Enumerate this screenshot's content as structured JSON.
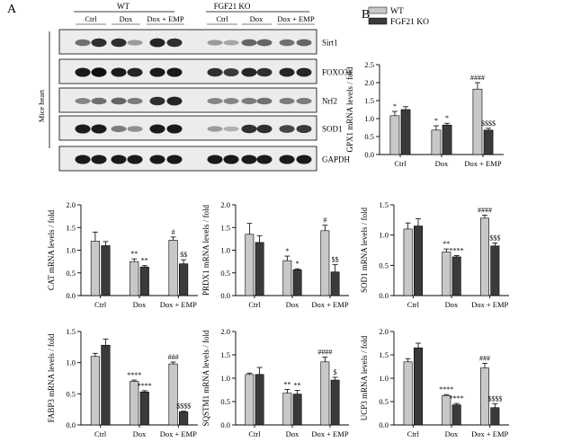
{
  "panel_labels": {
    "a": "A",
    "b": "B"
  },
  "blot": {
    "groups": [
      "WT",
      "FGF21 KO"
    ],
    "lanes": [
      "Ctrl",
      "Dox",
      "Dox + EMP",
      "Ctrl",
      "Dox",
      "Dox + EMP"
    ],
    "side_label": "Mice heart",
    "proteins": [
      "Sirt1",
      "FOXO3a",
      "Nrf2",
      "SOD1",
      "GAPDH"
    ],
    "band_intensity": [
      [
        0.55,
        0.85,
        0.85,
        0.35,
        0.9,
        0.85,
        0.35,
        0.3,
        0.6,
        0.6,
        0.55,
        0.6
      ],
      [
        0.95,
        1.0,
        0.95,
        0.9,
        0.95,
        0.95,
        0.85,
        0.8,
        0.9,
        0.85,
        0.9,
        0.9
      ],
      [
        0.45,
        0.55,
        0.6,
        0.5,
        0.85,
        0.9,
        0.45,
        0.45,
        0.5,
        0.55,
        0.5,
        0.5
      ],
      [
        0.95,
        0.95,
        0.5,
        0.4,
        0.95,
        0.95,
        0.35,
        0.25,
        0.85,
        0.85,
        0.75,
        0.8
      ],
      [
        0.95,
        0.95,
        0.95,
        0.95,
        0.95,
        0.95,
        0.95,
        0.95,
        0.95,
        0.95,
        0.95,
        0.95
      ]
    ]
  },
  "legend": {
    "entries": [
      "WT",
      "FGF21 KO"
    ]
  },
  "colors": {
    "wt": "#c8c8c8",
    "ko": "#3a3a3a"
  },
  "chart_data": [
    {
      "type": "bar",
      "ylabel": "GPX1 mRNA levels / fold",
      "categories": [
        "Ctrl",
        "Dox",
        "Dox + EMP"
      ],
      "series": [
        {
          "name": "WT",
          "values": [
            1.08,
            0.68,
            1.82
          ],
          "errors": [
            0.12,
            0.12,
            0.18
          ]
        },
        {
          "name": "FGF21 KO",
          "values": [
            1.25,
            0.82,
            0.68
          ],
          "errors": [
            0.08,
            0.05,
            0.05
          ]
        }
      ],
      "ylim": [
        0,
        2.5
      ],
      "yticks": [
        "0.0",
        "0.5",
        "1.0",
        "1.5",
        "2.0",
        "2.5"
      ],
      "annotations": [
        [
          "*",
          "*",
          "####"
        ],
        [
          "",
          "*",
          "$$$$"
        ]
      ]
    },
    {
      "type": "bar",
      "ylabel": "CAT mRNA levels / fold",
      "categories": [
        "Ctrl",
        "Dox",
        "Dox + EMP"
      ],
      "series": [
        {
          "name": "WT",
          "values": [
            1.2,
            0.75,
            1.22
          ],
          "errors": [
            0.2,
            0.06,
            0.07
          ]
        },
        {
          "name": "FGF21 KO",
          "values": [
            1.1,
            0.63,
            0.7
          ],
          "errors": [
            0.09,
            0.03,
            0.09
          ]
        }
      ],
      "ylim": [
        0,
        2.0
      ],
      "yticks": [
        "0.0",
        "0.5",
        "1.0",
        "1.5",
        "2.0"
      ],
      "annotations": [
        [
          "",
          "**",
          "#"
        ],
        [
          "",
          "**",
          "$$"
        ]
      ]
    },
    {
      "type": "bar",
      "ylabel": "PRDX1 mRNA levels / fold",
      "categories": [
        "Ctrl",
        "Dox",
        "Dox + EMP"
      ],
      "series": [
        {
          "name": "WT",
          "values": [
            1.35,
            0.77,
            1.43
          ],
          "errors": [
            0.24,
            0.1,
            0.12
          ]
        },
        {
          "name": "FGF21 KO",
          "values": [
            1.17,
            0.57,
            0.52
          ],
          "errors": [
            0.15,
            0.02,
            0.16
          ]
        }
      ],
      "ylim": [
        0,
        2.0
      ],
      "yticks": [
        "0.0",
        "0.5",
        "1.0",
        "1.5",
        "2.0"
      ],
      "annotations": [
        [
          "",
          "*",
          "#"
        ],
        [
          "",
          "*",
          "$$"
        ]
      ]
    },
    {
      "type": "bar",
      "ylabel": "SOD1 mRNA levels / fold",
      "categories": [
        "Ctrl",
        "Dox",
        "Dox + EMP"
      ],
      "series": [
        {
          "name": "WT",
          "values": [
            1.1,
            0.72,
            1.28
          ],
          "errors": [
            0.1,
            0.05,
            0.05
          ]
        },
        {
          "name": "FGF21 KO",
          "values": [
            1.15,
            0.64,
            0.82
          ],
          "errors": [
            0.12,
            0.02,
            0.05
          ]
        }
      ],
      "ylim": [
        0,
        1.5
      ],
      "yticks": [
        "0.0",
        "0.5",
        "1.0",
        "1.5"
      ],
      "annotations": [
        [
          "",
          "**",
          "####"
        ],
        [
          "",
          "****",
          "$$$"
        ]
      ]
    },
    {
      "type": "bar",
      "ylabel": "FABP3 mRNA levels / fold",
      "categories": [
        "Ctrl",
        "Dox",
        "Dox + EMP"
      ],
      "series": [
        {
          "name": "WT",
          "values": [
            1.1,
            0.7,
            0.98
          ],
          "errors": [
            0.05,
            0.02,
            0.03
          ]
        },
        {
          "name": "FGF21 KO",
          "values": [
            1.28,
            0.53,
            0.21
          ],
          "errors": [
            0.1,
            0.02,
            0.01
          ]
        }
      ],
      "ylim": [
        0,
        1.5
      ],
      "yticks": [
        "0.0",
        "0.5",
        "1.0",
        "1.5"
      ],
      "annotations": [
        [
          "",
          "****",
          "###"
        ],
        [
          "",
          "****",
          "$$$$"
        ]
      ]
    },
    {
      "type": "bar",
      "ylabel": "SQSTM1 mRNA levels / fold",
      "categories": [
        "Ctrl",
        "Dox",
        "Dox + EMP"
      ],
      "series": [
        {
          "name": "WT",
          "values": [
            1.08,
            0.68,
            1.35
          ],
          "errors": [
            0.03,
            0.08,
            0.1
          ]
        },
        {
          "name": "FGF21 KO",
          "values": [
            1.08,
            0.66,
            0.96
          ],
          "errors": [
            0.15,
            0.08,
            0.06
          ]
        }
      ],
      "ylim": [
        0,
        2.0
      ],
      "yticks": [
        "0.0",
        "0.5",
        "1.0",
        "1.5",
        "2.0"
      ],
      "annotations": [
        [
          "",
          "**",
          "####"
        ],
        [
          "",
          "**",
          "$"
        ]
      ]
    },
    {
      "type": "bar",
      "ylabel": "UCP3 mRNA levels / fold",
      "categories": [
        "Ctrl",
        "Dox",
        "Dox + EMP"
      ],
      "series": [
        {
          "name": "WT",
          "values": [
            1.35,
            0.63,
            1.22
          ],
          "errors": [
            0.07,
            0.02,
            0.1
          ]
        },
        {
          "name": "FGF21 KO",
          "values": [
            1.65,
            0.43,
            0.37
          ],
          "errors": [
            0.1,
            0.03,
            0.08
          ]
        }
      ],
      "ylim": [
        0,
        2.0
      ],
      "yticks": [
        "0.0",
        "0.5",
        "1.0",
        "1.5",
        "2.0"
      ],
      "annotations": [
        [
          "",
          "****",
          "###"
        ],
        [
          "",
          "****",
          "$$$$"
        ]
      ]
    }
  ]
}
